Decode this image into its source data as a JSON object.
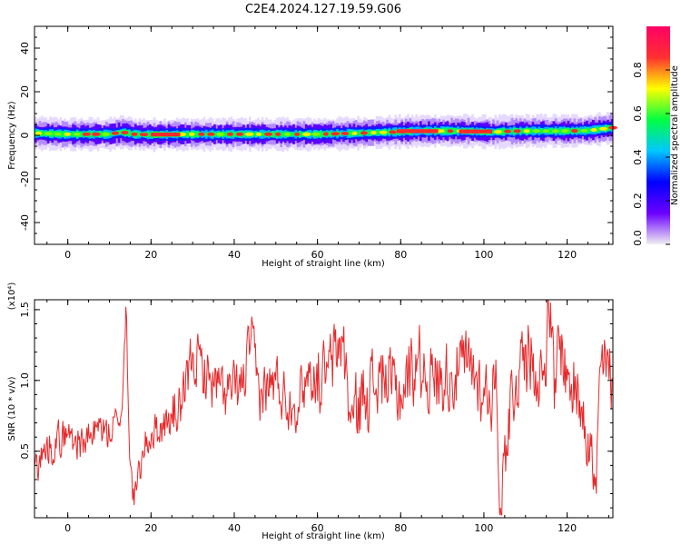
{
  "title": "C2E4.2024.127.19.59.G06",
  "colorbar": {
    "label": "Normalized spectral amplitude",
    "ticks": [
      "0.0",
      "0.2",
      "0.4",
      "0.6",
      "0.8"
    ],
    "colors": [
      "#f0f0f0",
      "#6a00ff",
      "#0000ff",
      "#00c8ff",
      "#00ff40",
      "#ffff00",
      "#ff3030",
      "#ff0066"
    ]
  },
  "chart_data": [
    {
      "type": "heatmap",
      "xlabel": "Height of straight line (km)",
      "ylabel": "Frequency (Hz)",
      "xlim": [
        -8,
        131
      ],
      "ylim": [
        -50,
        50
      ],
      "xticks": [
        "0",
        "20",
        "40",
        "60",
        "80",
        "100",
        "120"
      ],
      "yticks": [
        "-40",
        "-20",
        "0",
        "20",
        "40"
      ],
      "band": {
        "x": [
          -8,
          0,
          10,
          13,
          16,
          20,
          30,
          40,
          50,
          60,
          70,
          78,
          85,
          95,
          102,
          105,
          110,
          120,
          125,
          131
        ],
        "center": [
          1,
          0.5,
          0.5,
          1.5,
          0.5,
          0.3,
          0.5,
          0.5,
          0.5,
          0.5,
          1.0,
          1.5,
          2.0,
          2.0,
          1.5,
          1.8,
          2.0,
          2.0,
          2.2,
          3.5
        ]
      }
    },
    {
      "type": "line",
      "xlabel": "Height of straight line (km)",
      "ylabel": "SNR (10 * v/v)",
      "yscale_label": "(x10⁴)",
      "xlim": [
        -8,
        131
      ],
      "ylim": [
        0.03,
        1.57
      ],
      "xticks": [
        "0",
        "20",
        "40",
        "60",
        "80",
        "100",
        "120"
      ],
      "yticks": [
        "0.5",
        "1.0",
        "1.5"
      ],
      "series": [
        {
          "color": "#e8282a",
          "x": [
            -8,
            -4,
            0,
            4,
            8,
            10,
            12,
            13,
            14,
            15,
            16,
            18,
            20,
            24,
            28,
            30,
            34,
            38,
            42,
            44,
            46,
            50,
            54,
            58,
            62,
            66,
            68,
            72,
            76,
            80,
            84,
            88,
            92,
            96,
            100,
            103,
            104,
            106,
            110,
            114,
            116,
            117,
            118,
            120,
            124,
            127,
            128,
            131
          ],
          "y": [
            0.4,
            0.55,
            0.62,
            0.55,
            0.68,
            0.6,
            0.72,
            0.8,
            1.52,
            0.4,
            0.12,
            0.5,
            0.62,
            0.7,
            0.85,
            1.2,
            1.0,
            0.9,
            0.95,
            1.3,
            0.9,
            1.0,
            0.8,
            1.05,
            1.0,
            1.3,
            0.7,
            0.95,
            1.0,
            0.9,
            1.15,
            1.0,
            1.05,
            1.1,
            0.95,
            0.9,
            0.1,
            0.8,
            1.25,
            1.0,
            1.55,
            0.8,
            1.35,
            1.0,
            0.85,
            0.2,
            1.1,
            1.0
          ]
        }
      ]
    }
  ]
}
